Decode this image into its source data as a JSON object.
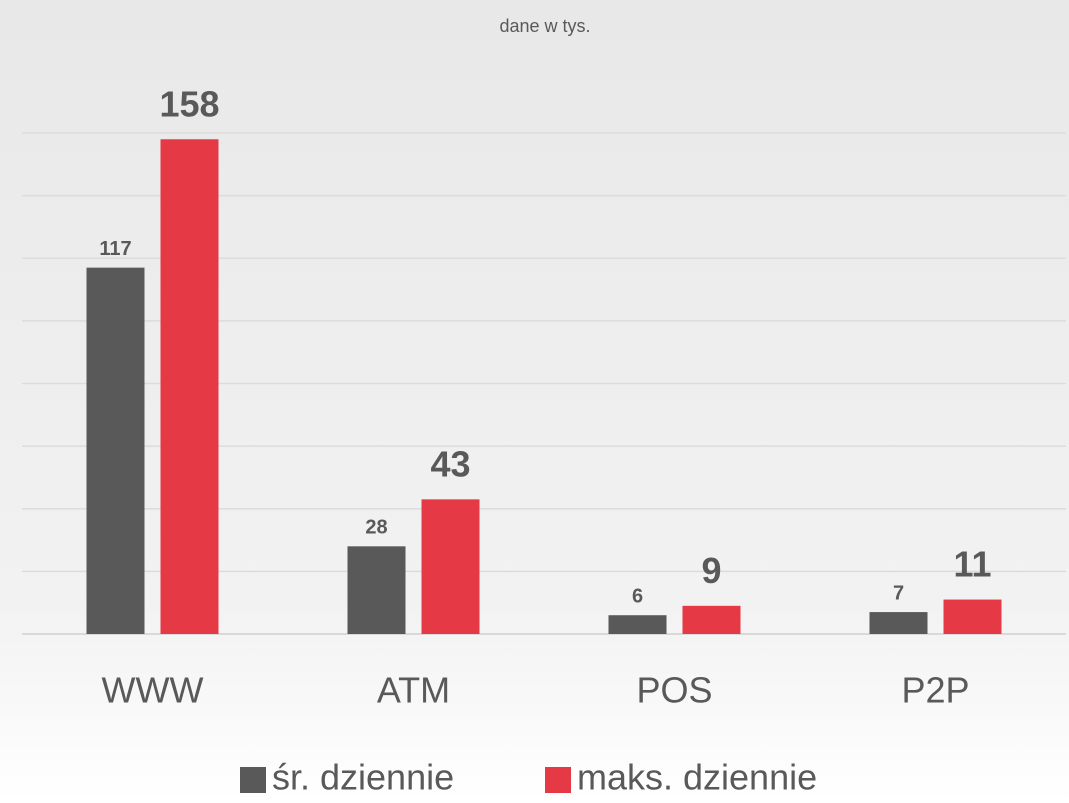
{
  "chart_data": {
    "type": "bar",
    "subtitle": "dane w tys.",
    "categories": [
      "WWW",
      "ATM",
      "POS",
      "P2P"
    ],
    "series": [
      {
        "name": "śr. dziennie",
        "color": "#595959",
        "values": [
          117,
          28,
          6,
          7
        ]
      },
      {
        "name": "maks. dziennie",
        "color": "#e63946",
        "values": [
          158,
          43,
          9,
          11
        ]
      }
    ],
    "ylim": [
      0,
      160
    ],
    "yticks": [
      0,
      20,
      40,
      60,
      80,
      100,
      120,
      140,
      160
    ],
    "grid": true,
    "legend": "bottom"
  }
}
